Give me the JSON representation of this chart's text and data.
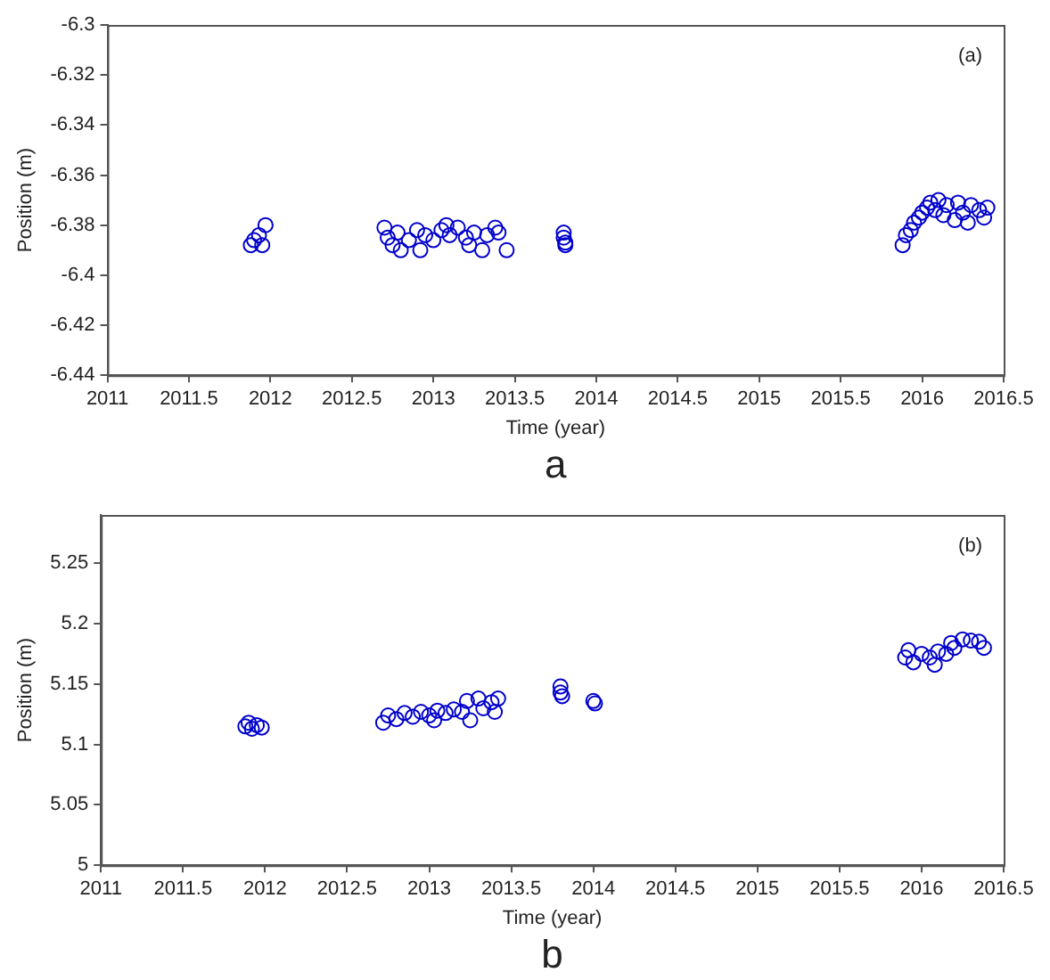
{
  "chart_data": [
    {
      "type": "scatter",
      "xlabel": "Time (year)",
      "ylabel": "Position (m)",
      "annotations": [
        "(a)",
        "a"
      ],
      "marker": "circle",
      "grid": false,
      "xlim": [
        2011,
        2016.5
      ],
      "xticks": [
        2011,
        2011.5,
        2012,
        2012.5,
        2013,
        2013.5,
        2014,
        2014.5,
        2015,
        2015.5,
        2016,
        2016.5
      ],
      "ylim": [
        -6.44,
        -6.3
      ],
      "yticks": [
        -6.44,
        -6.42,
        -6.4,
        -6.38,
        -6.36,
        -6.34,
        -6.32,
        -6.3
      ],
      "series": [
        {
          "color": "#0000cc",
          "x": [
            2011.88,
            2011.9,
            2011.93,
            2011.95,
            2011.97,
            2012.7,
            2012.72,
            2012.75,
            2012.78,
            2012.8,
            2012.85,
            2012.9,
            2012.92,
            2012.95,
            2013.0,
            2013.05,
            2013.08,
            2013.1,
            2013.15,
            2013.2,
            2013.22,
            2013.25,
            2013.3,
            2013.33,
            2013.38,
            2013.4,
            2013.45,
            2013.8,
            2013.8,
            2013.81,
            2013.81,
            2015.88,
            2015.9,
            2015.93,
            2015.95,
            2015.98,
            2016.0,
            2016.03,
            2016.05,
            2016.08,
            2016.1,
            2016.13,
            2016.15,
            2016.2,
            2016.22,
            2016.25,
            2016.28,
            2016.3,
            2016.35,
            2016.38,
            2016.4
          ],
          "values": [
            -6.388,
            -6.386,
            -6.384,
            -6.388,
            -6.38,
            -6.381,
            -6.385,
            -6.388,
            -6.383,
            -6.39,
            -6.386,
            -6.382,
            -6.39,
            -6.384,
            -6.386,
            -6.382,
            -6.38,
            -6.384,
            -6.381,
            -6.385,
            -6.388,
            -6.383,
            -6.39,
            -6.384,
            -6.381,
            -6.383,
            -6.39,
            -6.383,
            -6.385,
            -6.387,
            -6.388,
            -6.388,
            -6.384,
            -6.382,
            -6.379,
            -6.377,
            -6.375,
            -6.373,
            -6.371,
            -6.374,
            -6.37,
            -6.376,
            -6.372,
            -6.378,
            -6.371,
            -6.375,
            -6.379,
            -6.372,
            -6.374,
            -6.377,
            -6.373
          ]
        }
      ]
    },
    {
      "type": "scatter",
      "xlabel": "Time (year)",
      "ylabel": "Position (m)",
      "annotations": [
        "(b)",
        "b"
      ],
      "marker": "circle",
      "grid": false,
      "xlim": [
        2011,
        2016.5
      ],
      "xticks": [
        2011,
        2011.5,
        2012,
        2012.5,
        2013,
        2013.5,
        2014,
        2014.5,
        2015,
        2015.5,
        2016,
        2016.5
      ],
      "ylim": [
        5,
        5.29
      ],
      "yticks": [
        5,
        5.05,
        5.1,
        5.15,
        5.2,
        5.25
      ],
      "series": [
        {
          "color": "#0000cc",
          "x": [
            2011.88,
            2011.9,
            2011.92,
            2011.95,
            2011.98,
            2012.72,
            2012.75,
            2012.8,
            2012.85,
            2012.9,
            2012.95,
            2013.0,
            2013.03,
            2013.05,
            2013.1,
            2013.15,
            2013.2,
            2013.23,
            2013.25,
            2013.3,
            2013.33,
            2013.38,
            2013.4,
            2013.42,
            2013.8,
            2013.8,
            2013.81,
            2014.0,
            2014.01,
            2015.9,
            2015.92,
            2015.95,
            2016.0,
            2016.05,
            2016.08,
            2016.1,
            2016.15,
            2016.18,
            2016.2,
            2016.25,
            2016.3,
            2016.35,
            2016.38
          ],
          "values": [
            5.115,
            5.118,
            5.113,
            5.116,
            5.114,
            5.118,
            5.124,
            5.121,
            5.126,
            5.123,
            5.127,
            5.124,
            5.12,
            5.128,
            5.126,
            5.129,
            5.127,
            5.136,
            5.12,
            5.138,
            5.13,
            5.135,
            5.127,
            5.138,
            5.148,
            5.143,
            5.14,
            5.136,
            5.134,
            5.172,
            5.178,
            5.168,
            5.175,
            5.172,
            5.166,
            5.177,
            5.175,
            5.184,
            5.18,
            5.187,
            5.186,
            5.185,
            5.18
          ]
        }
      ]
    }
  ]
}
